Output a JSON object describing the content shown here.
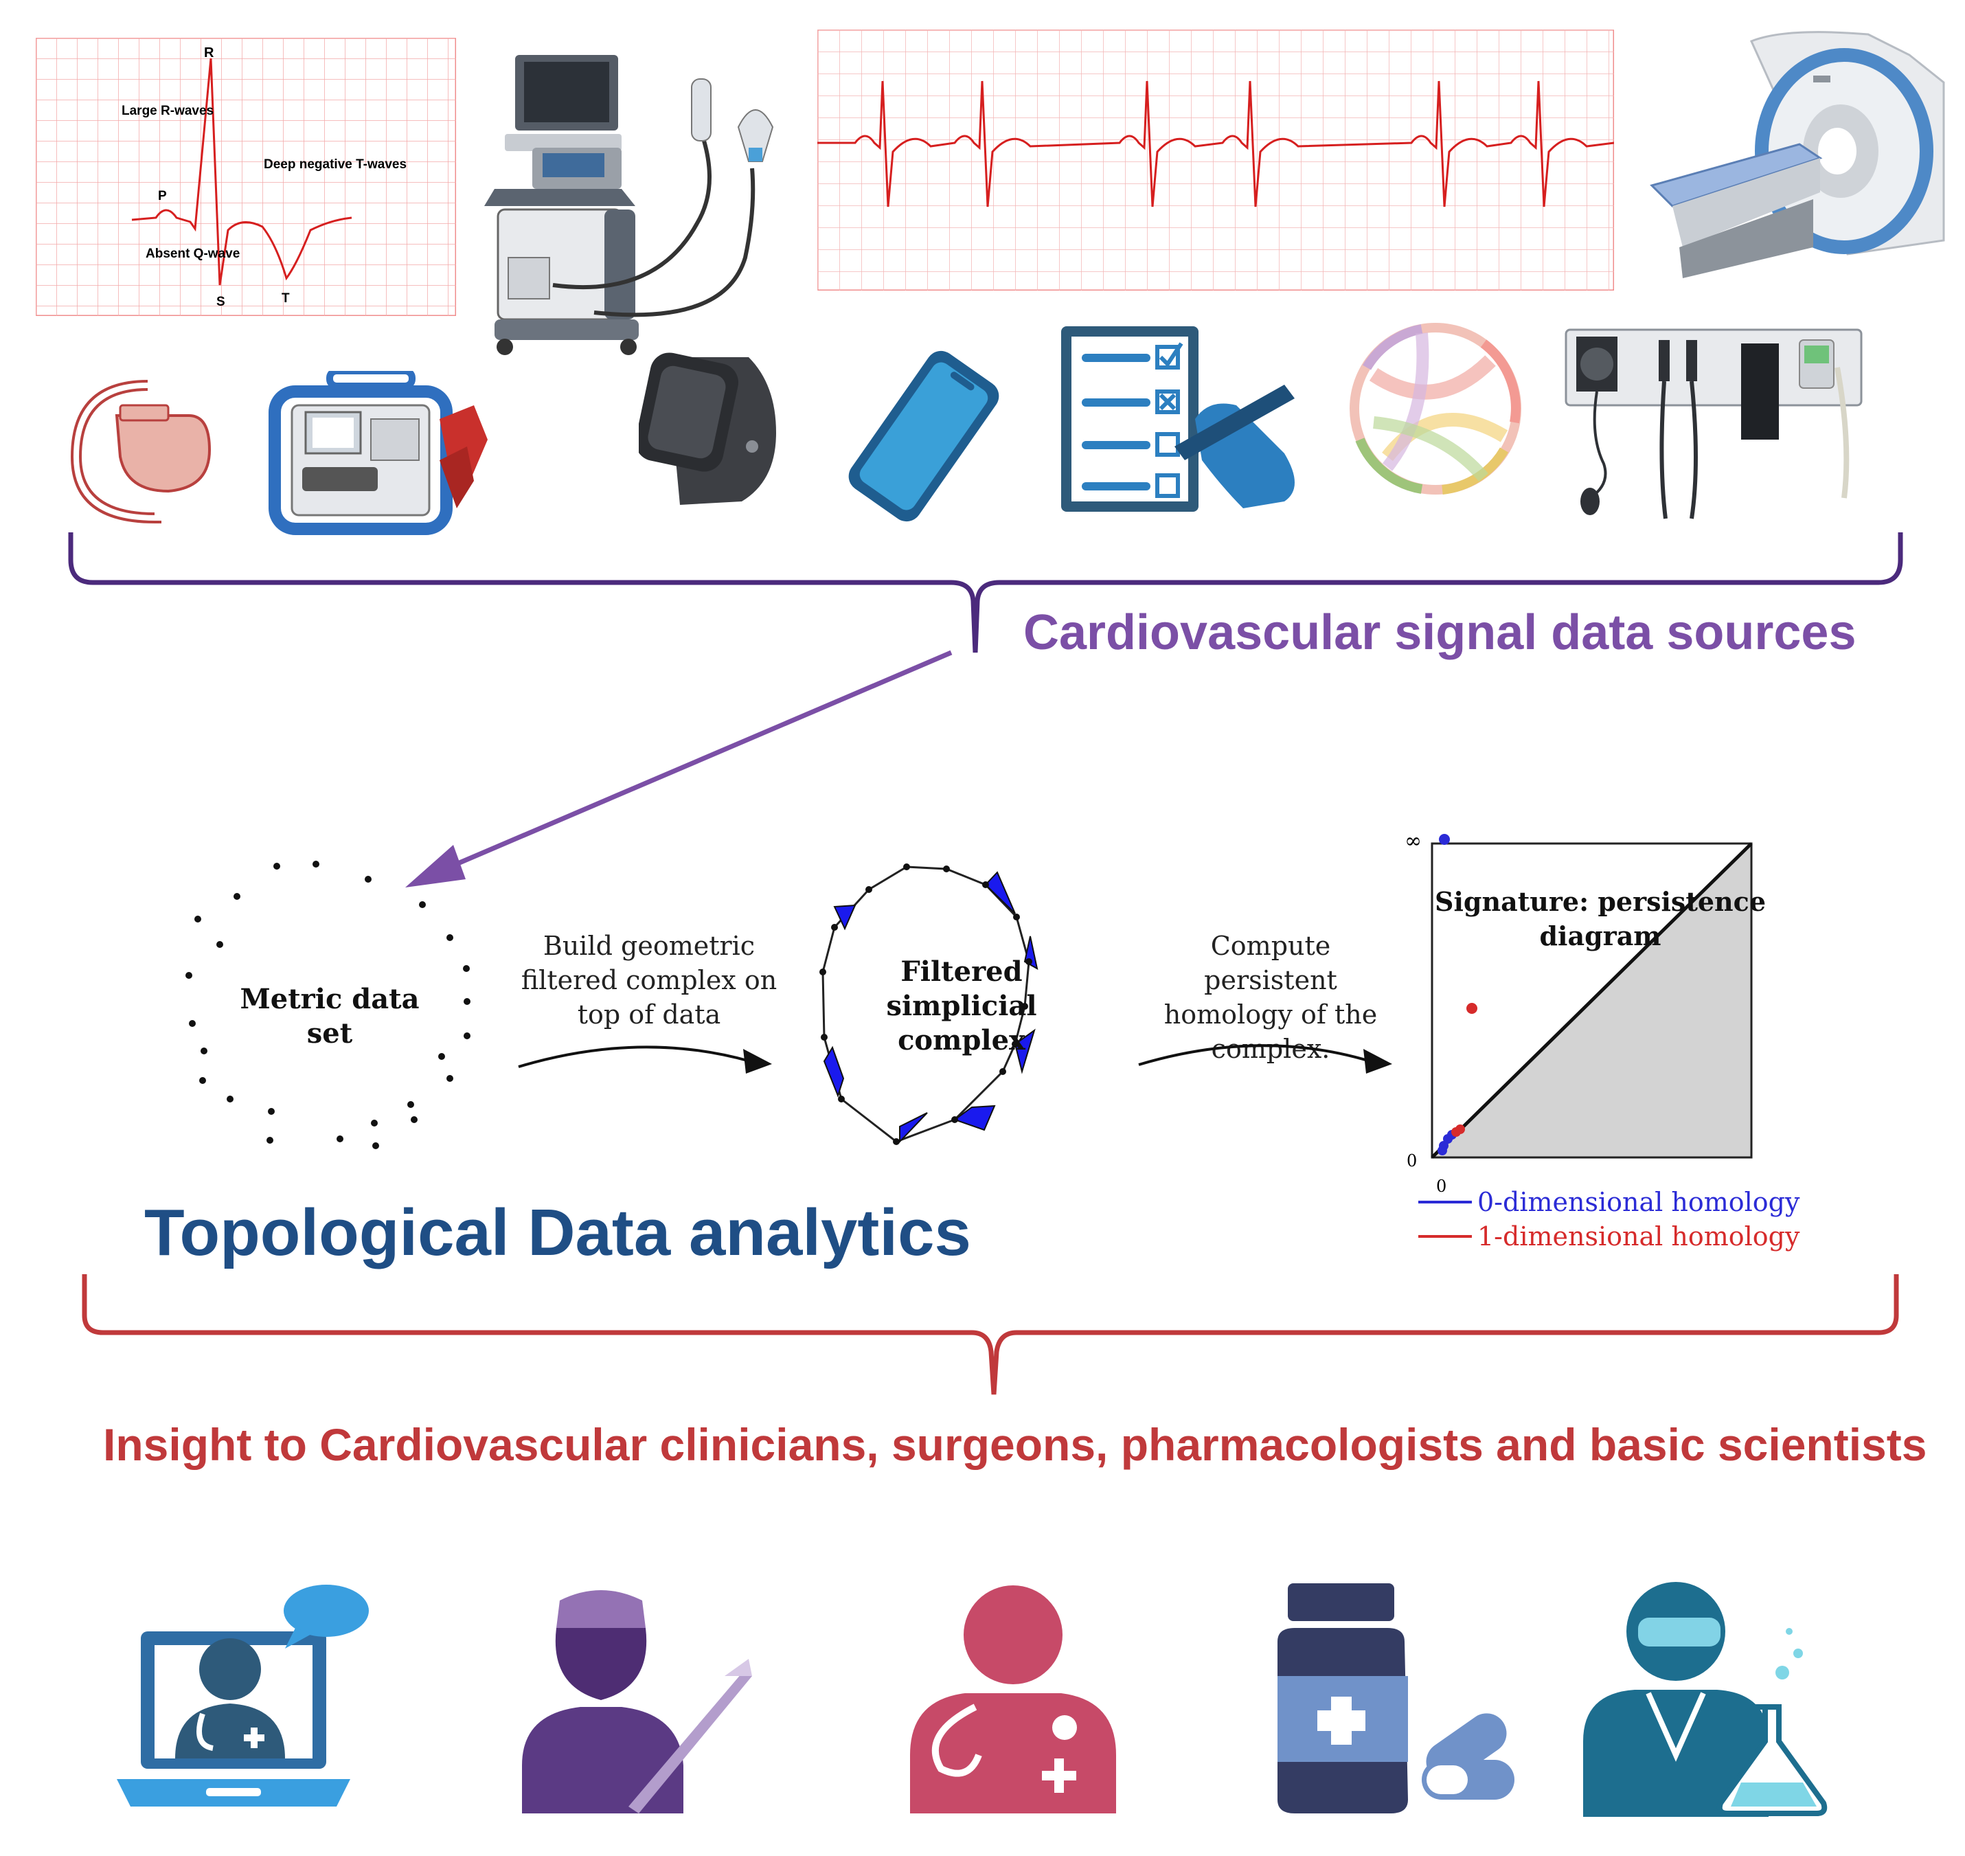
{
  "sources": {
    "ecg_zoom_labels": {
      "r": "R",
      "large_r_waves": "Large R-waves",
      "p": "P",
      "deep_negative_t_waves": "Deep negative T-waves",
      "absent_q_wave": "Absent Q-wave",
      "s": "S",
      "t": "T"
    },
    "icons": [
      "ecg-zoom-icon",
      "ultrasound-machine-icon",
      "ecg-strip-icon",
      "mri-scanner-icon",
      "pacemaker-icon",
      "defibrillator-icon",
      "smartwatch-icon",
      "smartphone-icon",
      "clinical-checklist-icon",
      "chord-diagram-icon",
      "wall-diagnostic-station-icon"
    ],
    "caption": "Cardiovascular signal data sources",
    "brace_color": "#4b2a7c",
    "caption_color": "#7b4fa6"
  },
  "tda": {
    "title": "Topological Data analytics",
    "title_color": "#1f4e85",
    "metric_data_set": "Metric data set",
    "step1": "Build geometric filtered complex on top of data",
    "filtered_complex": "Filtered simplicial complex",
    "step2": "Compute persistent homology of the complex.",
    "diagram": {
      "title": "Signature: persistence diagram",
      "infinity_label": "∞",
      "zero_y": "0",
      "zero_x": "0",
      "legend": [
        {
          "label": "0-dimensional homology",
          "color": "#2b2bd6"
        },
        {
          "label": "1-dimensional homology",
          "color": "#d62b2b"
        }
      ]
    }
  },
  "insight": {
    "caption": "Insight to Cardiovascular clinicians, surgeons, pharmacologists and basic scientists",
    "brace_color": "#c0393b",
    "icons": [
      "telemedicine-doctor-icon",
      "surgeon-icon",
      "clinician-icon",
      "medication-icon",
      "scientist-icon"
    ]
  }
}
